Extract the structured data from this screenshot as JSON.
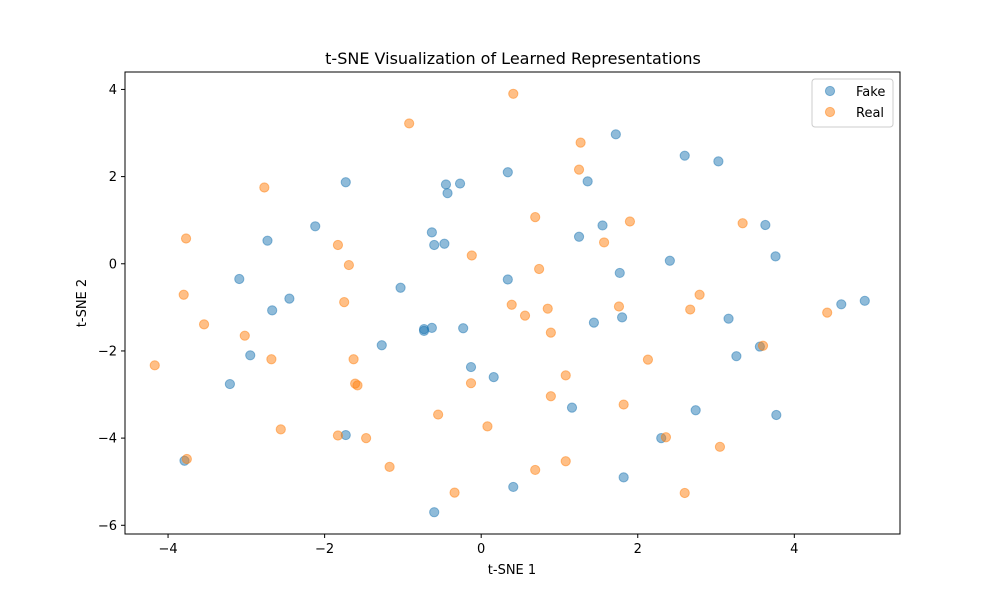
{
  "chart_data": {
    "type": "scatter",
    "title": "t-SNE Visualization of Learned Representations",
    "xlabel": "t-SNE 1",
    "ylabel": "t-SNE 2",
    "xlim": [
      -4.55,
      5.35
    ],
    "ylim": [
      -6.2,
      4.4
    ],
    "xticks": [
      -4,
      -2,
      0,
      2,
      4
    ],
    "yticks": [
      -6,
      -4,
      -2,
      0,
      2,
      4
    ],
    "grid": false,
    "legend_position": "top-right",
    "series": [
      {
        "name": "Fake",
        "color": "#1f77b4",
        "points": [
          [
            1.72,
            2.97
          ],
          [
            2.6,
            2.48
          ],
          [
            3.03,
            2.35
          ],
          [
            0.34,
            2.1
          ],
          [
            1.36,
            1.89
          ],
          [
            -1.73,
            1.87
          ],
          [
            -0.45,
            1.82
          ],
          [
            -0.27,
            1.84
          ],
          [
            -0.43,
            1.62
          ],
          [
            -2.12,
            0.86
          ],
          [
            3.63,
            0.89
          ],
          [
            1.55,
            0.88
          ],
          [
            -0.63,
            0.72
          ],
          [
            1.25,
            0.62
          ],
          [
            -2.73,
            0.53
          ],
          [
            -0.47,
            0.46
          ],
          [
            -0.6,
            0.43
          ],
          [
            3.76,
            0.17
          ],
          [
            2.41,
            0.07
          ],
          [
            1.77,
            -0.21
          ],
          [
            -3.09,
            -0.35
          ],
          [
            0.34,
            -0.36
          ],
          [
            -1.03,
            -0.55
          ],
          [
            -2.45,
            -0.8
          ],
          [
            -2.67,
            -1.07
          ],
          [
            4.9,
            -0.85
          ],
          [
            4.6,
            -0.93
          ],
          [
            3.16,
            -1.26
          ],
          [
            1.8,
            -1.23
          ],
          [
            1.44,
            -1.35
          ],
          [
            -0.63,
            -1.47
          ],
          [
            -0.23,
            -1.48
          ],
          [
            -0.73,
            -1.5
          ],
          [
            -0.73,
            -1.54
          ],
          [
            -1.27,
            -1.87
          ],
          [
            3.56,
            -1.9
          ],
          [
            3.26,
            -2.12
          ],
          [
            -2.95,
            -2.1
          ],
          [
            -0.13,
            -2.37
          ],
          [
            0.16,
            -2.6
          ],
          [
            -3.21,
            -2.76
          ],
          [
            1.16,
            -3.3
          ],
          [
            2.74,
            -3.36
          ],
          [
            3.77,
            -3.47
          ],
          [
            -1.73,
            -3.93
          ],
          [
            2.3,
            -4.0
          ],
          [
            -3.79,
            -4.52
          ],
          [
            1.82,
            -4.9
          ],
          [
            0.41,
            -5.12
          ],
          [
            -0.6,
            -5.7
          ]
        ]
      },
      {
        "name": "Real",
        "color": "#ff7f0e",
        "points": [
          [
            0.41,
            3.9
          ],
          [
            -0.92,
            3.22
          ],
          [
            1.27,
            2.78
          ],
          [
            1.25,
            2.16
          ],
          [
            -2.77,
            1.75
          ],
          [
            0.69,
            1.07
          ],
          [
            1.9,
            0.97
          ],
          [
            3.34,
            0.93
          ],
          [
            -3.77,
            0.58
          ],
          [
            -1.83,
            0.43
          ],
          [
            1.57,
            0.49
          ],
          [
            -0.12,
            0.19
          ],
          [
            -1.69,
            -0.03
          ],
          [
            0.74,
            -0.12
          ],
          [
            -3.8,
            -0.71
          ],
          [
            2.79,
            -0.71
          ],
          [
            -3.54,
            -1.39
          ],
          [
            -1.75,
            -0.88
          ],
          [
            0.39,
            -0.94
          ],
          [
            0.85,
            -1.03
          ],
          [
            1.76,
            -0.98
          ],
          [
            2.67,
            -1.05
          ],
          [
            0.56,
            -1.19
          ],
          [
            4.42,
            -1.12
          ],
          [
            -3.02,
            -1.65
          ],
          [
            0.89,
            -1.58
          ],
          [
            3.6,
            -1.88
          ],
          [
            -2.68,
            -2.19
          ],
          [
            -1.63,
            -2.19
          ],
          [
            2.13,
            -2.2
          ],
          [
            1.08,
            -2.56
          ],
          [
            -1.61,
            -2.75
          ],
          [
            -1.58,
            -2.79
          ],
          [
            -0.13,
            -2.74
          ],
          [
            0.89,
            -3.04
          ],
          [
            1.82,
            -3.23
          ],
          [
            -0.55,
            -3.46
          ],
          [
            -2.56,
            -3.8
          ],
          [
            0.08,
            -3.73
          ],
          [
            -1.83,
            -3.94
          ],
          [
            -1.47,
            -4.0
          ],
          [
            2.36,
            -3.98
          ],
          [
            3.05,
            -4.2
          ],
          [
            -3.76,
            -4.48
          ],
          [
            -1.17,
            -4.66
          ],
          [
            1.08,
            -4.53
          ],
          [
            0.69,
            -4.73
          ],
          [
            -0.34,
            -5.25
          ],
          [
            2.6,
            -5.26
          ],
          [
            -4.17,
            -2.33
          ]
        ]
      }
    ]
  }
}
